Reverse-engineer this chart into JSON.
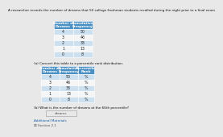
{
  "title": "A researcher records the number of dreams that 50 college freshman students recalled during the night prior to a final exam",
  "table1_headers": [
    "Number of\nDreams",
    "Cumulative\nFrequency"
  ],
  "table1_rows": [
    [
      "4",
      "50"
    ],
    [
      "3",
      "46"
    ],
    [
      "2",
      "33"
    ],
    [
      "1",
      "13"
    ],
    [
      "0",
      "8"
    ]
  ],
  "part_a_text": "(a) Convert this table to a percentile rank distribution.",
  "table2_headers": [
    "Number of\nDreams",
    "Cumulative\nFrequency",
    "Percentile\nRank"
  ],
  "table2_rows": [
    [
      "4",
      "50",
      "%"
    ],
    [
      "3",
      "46",
      "%"
    ],
    [
      "2",
      "33",
      "%"
    ],
    [
      "1",
      "13",
      "%"
    ],
    [
      "0",
      "8",
      "%"
    ]
  ],
  "part_b_text": "(b) What is the number of dreams at the 66th percentile?",
  "part_b_answer": "dreams",
  "additional_materials": "Additional Materials",
  "section": "☒ Section 2.1",
  "header_bg": "#4a90c4",
  "row_bg_alt": "#cde0f0",
  "row_bg_white": "#f5f5f5",
  "answer_box_bg": "#e8e8e8",
  "text_color_header": "#ffffff",
  "text_color_body": "#222222",
  "text_color_link": "#1a5fa8",
  "text_color_section": "#555555",
  "bg_color": "#e8e8e8",
  "title_fontsize": 3.0,
  "header_fontsize": 3.2,
  "cell_fontsize": 3.4,
  "label_fontsize": 3.0
}
